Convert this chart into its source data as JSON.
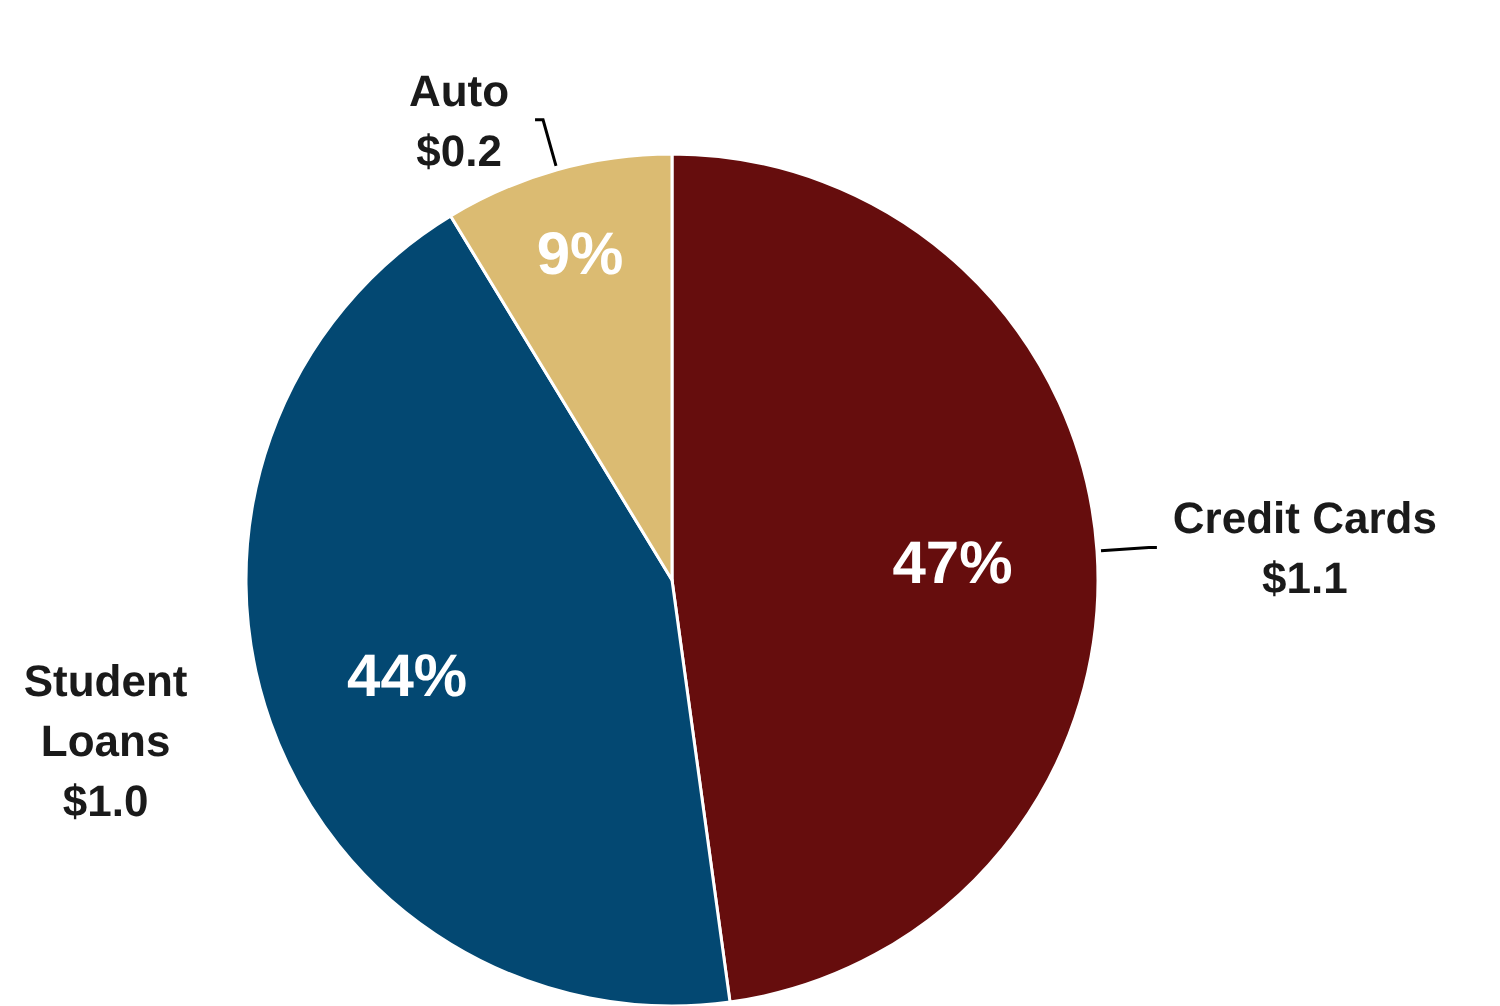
{
  "chart_data": {
    "type": "pie",
    "categories": [
      "Credit Cards",
      "Student Loans",
      "Auto"
    ],
    "values": [
      1.1,
      1.0,
      0.2
    ],
    "value_labels": [
      "$1.1",
      "$1.0",
      "$0.2"
    ],
    "colors": [
      "#660d0d",
      "#034872",
      "#dbbb72"
    ],
    "annotations": [
      {
        "text": "47%",
        "x": "Credit Cards"
      },
      {
        "text": "44%",
        "x": "Student Loans"
      },
      {
        "text": "9%",
        "x": "Auto"
      }
    ]
  }
}
